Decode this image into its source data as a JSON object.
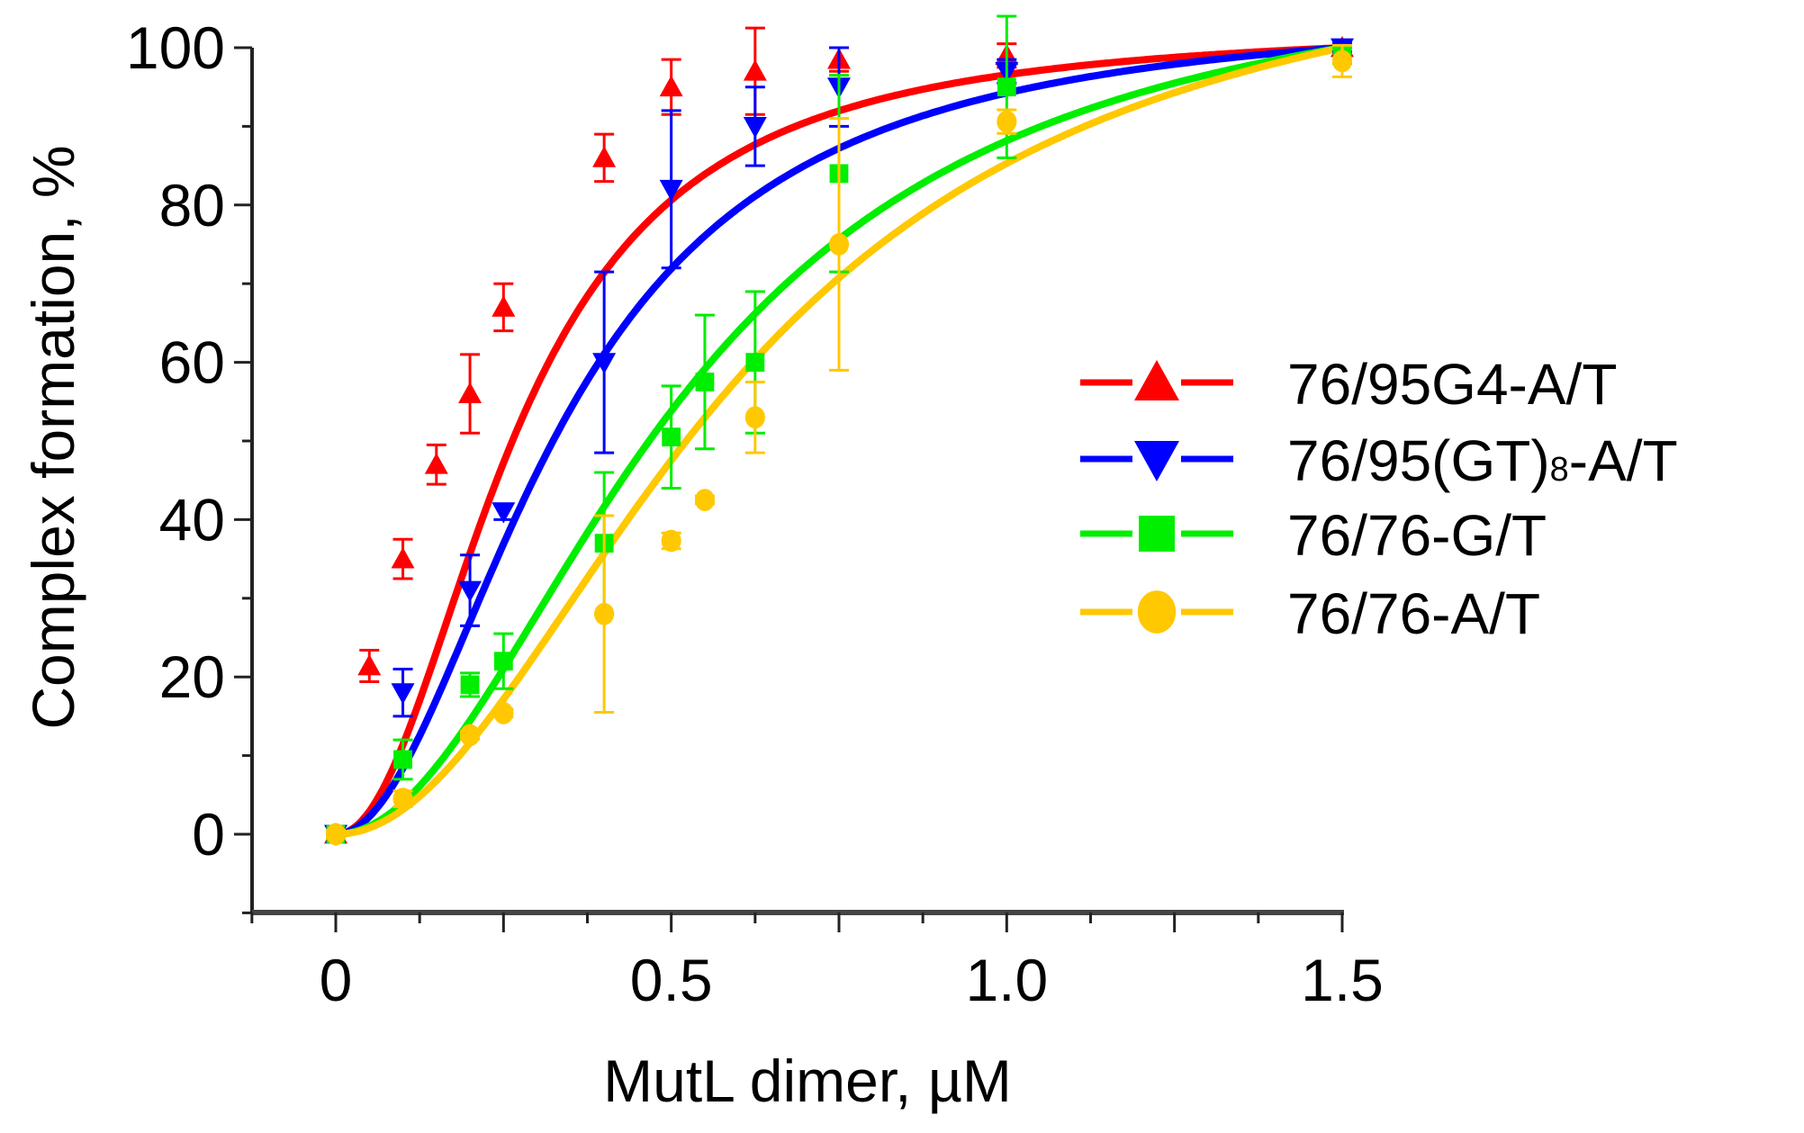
{
  "chart_data": {
    "type": "line",
    "title": "",
    "xlabel": "MutL dimer, µM",
    "ylabel": "Complex formation, %",
    "xlim": [
      -0.125,
      1.5
    ],
    "ylim": [
      -10,
      100
    ],
    "x_ticks": [
      "0",
      "0.5",
      "1.0",
      "1.5"
    ],
    "x_tick_values": [
      0,
      0.5,
      1.0,
      1.5
    ],
    "x_minor_step": 0.125,
    "y_ticks": [
      "0",
      "20",
      "40",
      "60",
      "80",
      "100"
    ],
    "y_tick_values": [
      0,
      20,
      40,
      60,
      80,
      100
    ],
    "y_minor_step": 10,
    "grid": false,
    "legend_position": "right-center",
    "series": [
      {
        "name": "76/95G4-A/T",
        "color": "#ff0000",
        "marker": "triangle-up",
        "x": [
          0,
          0.05,
          0.1,
          0.15,
          0.2,
          0.25,
          0.4,
          0.5,
          0.625,
          0.75,
          1.0,
          1.5
        ],
        "values": [
          0,
          21.4,
          35,
          47,
          56,
          67,
          86,
          95,
          97,
          98.5,
          99,
          100
        ],
        "errors": [
          1,
          2,
          2.5,
          2.5,
          5,
          3,
          3,
          3.5,
          5.5,
          1.5,
          1.5,
          0.5
        ],
        "fit_k": 0.27,
        "fit_n": 2.1
      },
      {
        "name": "76/95(GT)8-A/T",
        "color": "#0000ff",
        "marker": "triangle-down",
        "x": [
          0,
          0.1,
          0.2,
          0.25,
          0.4,
          0.5,
          0.625,
          0.75,
          1.0,
          1.5
        ],
        "values": [
          0,
          18,
          31,
          41,
          60,
          82,
          90,
          95,
          97,
          100
        ],
        "errors": [
          1,
          3,
          4.5,
          1,
          11.5,
          10,
          5,
          5,
          1.5,
          0.5
        ],
        "fit_k": 0.34,
        "fit_n": 2.0
      },
      {
        "name": "76/76-G/T",
        "color": "#00ee00",
        "marker": "square",
        "x": [
          0,
          0.1,
          0.2,
          0.25,
          0.4,
          0.5,
          0.55,
          0.625,
          0.75,
          1.0,
          1.5
        ],
        "values": [
          0,
          9.5,
          19,
          22,
          37,
          50.5,
          57.5,
          60,
          84,
          95,
          99
        ],
        "errors": [
          0.5,
          2.5,
          1.5,
          3.5,
          9,
          6.5,
          8.5,
          9,
          12.5,
          9,
          1
        ],
        "fit_k": 0.52,
        "fit_n": 2.0
      },
      {
        "name": "76/76-A/T",
        "color": "#ffc800",
        "marker": "circle",
        "x": [
          0,
          0.1,
          0.2,
          0.25,
          0.4,
          0.5,
          0.55,
          0.625,
          0.75,
          1.0,
          1.5
        ],
        "values": [
          0,
          4.5,
          12.6,
          15.4,
          28,
          37.3,
          42.5,
          53,
          75,
          90.6,
          98.3
        ],
        "errors": [
          0.5,
          1,
          0.5,
          0.5,
          12.5,
          1,
          0.5,
          4.5,
          16,
          1.5,
          2
        ],
        "fit_k": 0.6,
        "fit_n": 2.0
      }
    ]
  },
  "legend": {
    "items": [
      {
        "label_main": "76/95G4-A/T"
      },
      {
        "label_pre": "76/95(GT)",
        "label_sub": "8",
        "label_post": "-A/T"
      },
      {
        "label_main": "76/76-G/T"
      },
      {
        "label_main": "76/76-A/T"
      }
    ]
  },
  "axes": {
    "x_title": "MutL dimer, µM",
    "y_title": "Complex formation, %"
  }
}
